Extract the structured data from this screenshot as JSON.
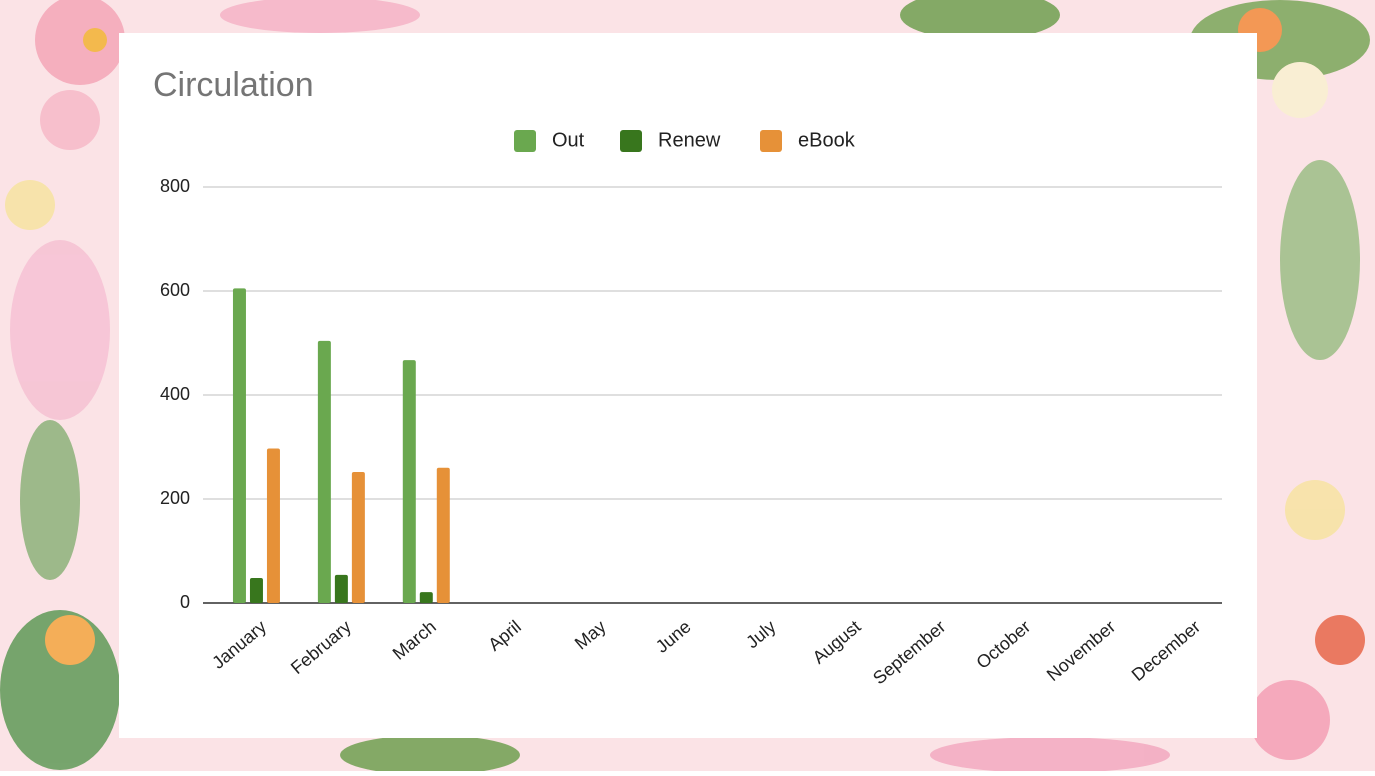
{
  "chart_data": {
    "type": "bar",
    "title": "Circulation",
    "categories": [
      "January",
      "February",
      "March",
      "April",
      "May",
      "June",
      "July",
      "August",
      "September",
      "October",
      "November",
      "December"
    ],
    "series": [
      {
        "name": "Out",
        "color": "#6aa84f",
        "values": [
          605,
          504,
          467,
          null,
          null,
          null,
          null,
          null,
          null,
          null,
          null,
          null
        ]
      },
      {
        "name": "Renew",
        "color": "#38761d",
        "values": [
          48,
          54,
          21,
          null,
          null,
          null,
          null,
          null,
          null,
          null,
          null,
          null
        ]
      },
      {
        "name": "eBook",
        "color": "#e69138",
        "values": [
          297,
          252,
          260,
          null,
          null,
          null,
          null,
          null,
          null,
          null,
          null,
          null
        ]
      }
    ],
    "ylim": [
      0,
      800
    ],
    "yticks": [
      0,
      200,
      400,
      600,
      800
    ],
    "grid": true,
    "legend": "top"
  }
}
